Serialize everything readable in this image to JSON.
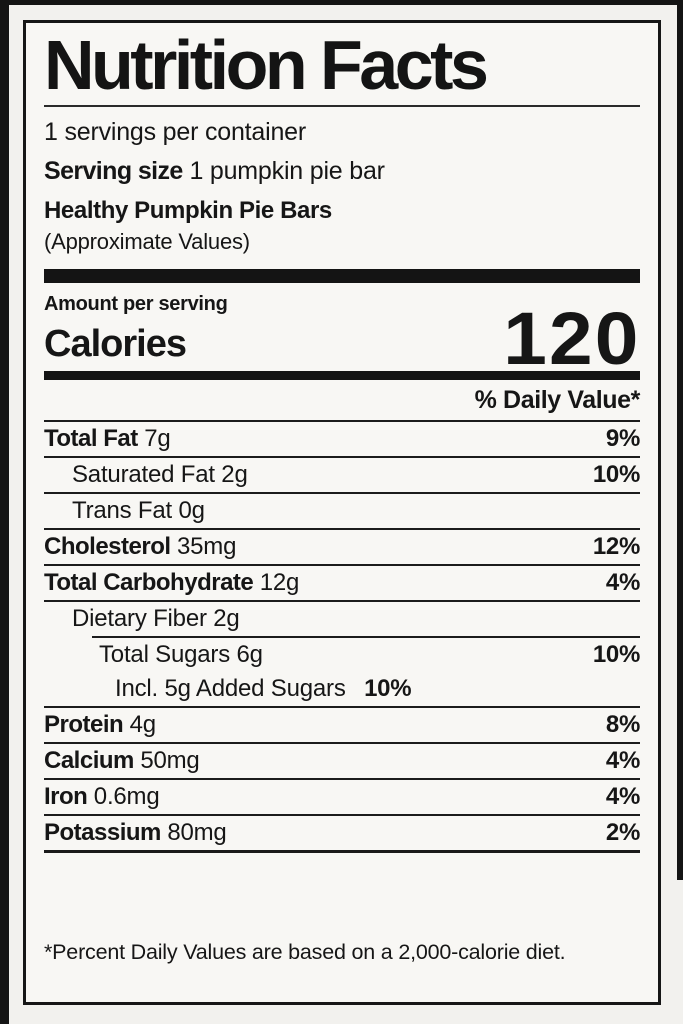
{
  "label": {
    "title": "Nutrition Facts",
    "servings_per_container": "1 servings per container",
    "serving_size_label": "Serving size",
    "serving_size_value": "1 pumpkin pie bar",
    "product_name": "Healthy Pumpkin Pie Bars",
    "product_note": "(Approximate Values)",
    "amount_per_serving": "Amount per serving",
    "calories_label": "Calories",
    "calories_value": "120",
    "daily_value_header": "% Daily Value*",
    "rows": [
      {
        "name": "Total Fat",
        "amount": "7g",
        "dv": "9%",
        "bold": true,
        "indent": 0,
        "divider": "none"
      },
      {
        "name": "Saturated Fat",
        "amount": "2g",
        "dv": "10%",
        "bold": false,
        "indent": 1,
        "divider": "full"
      },
      {
        "name": "Trans Fat",
        "amount": "0g",
        "dv": "",
        "bold": false,
        "indent": 1,
        "divider": "full"
      },
      {
        "name": "Cholesterol",
        "amount": "35mg",
        "dv": "12%",
        "bold": true,
        "indent": 0,
        "divider": "full"
      },
      {
        "name": "Total Carbohydrate",
        "amount": "12g",
        "dv": "4%",
        "bold": true,
        "indent": 0,
        "divider": "full"
      },
      {
        "name": "Dietary Fiber",
        "amount": "2g",
        "dv": "",
        "bold": false,
        "indent": 1,
        "divider": "full"
      },
      {
        "name": "Total Sugars",
        "amount": "6g",
        "dv": "10%",
        "bold": false,
        "indent": 2,
        "divider": "indent"
      },
      {
        "name": "Incl. 5g Added Sugars",
        "amount": "",
        "inline_dv": "10%",
        "dv": "",
        "bold": false,
        "indent": 3,
        "divider": "none"
      },
      {
        "name": "Protein",
        "amount": "4g",
        "dv": "8%",
        "bold": true,
        "indent": 0,
        "divider": "full"
      },
      {
        "name": "Calcium",
        "amount": "50mg",
        "dv": "4%",
        "bold": true,
        "indent": 0,
        "divider": "full"
      },
      {
        "name": "Iron",
        "amount": "0.6mg",
        "dv": "4%",
        "bold": true,
        "indent": 0,
        "divider": "full"
      },
      {
        "name": "Potassium",
        "amount": "80mg",
        "dv": "2%",
        "bold": true,
        "indent": 0,
        "divider": "full"
      }
    ],
    "footnote": "*Percent Daily Values are based on a 2,000-calorie diet.",
    "colors": {
      "ink": "#161616",
      "paper": "#f8f7f4",
      "frame": "#141414"
    }
  }
}
